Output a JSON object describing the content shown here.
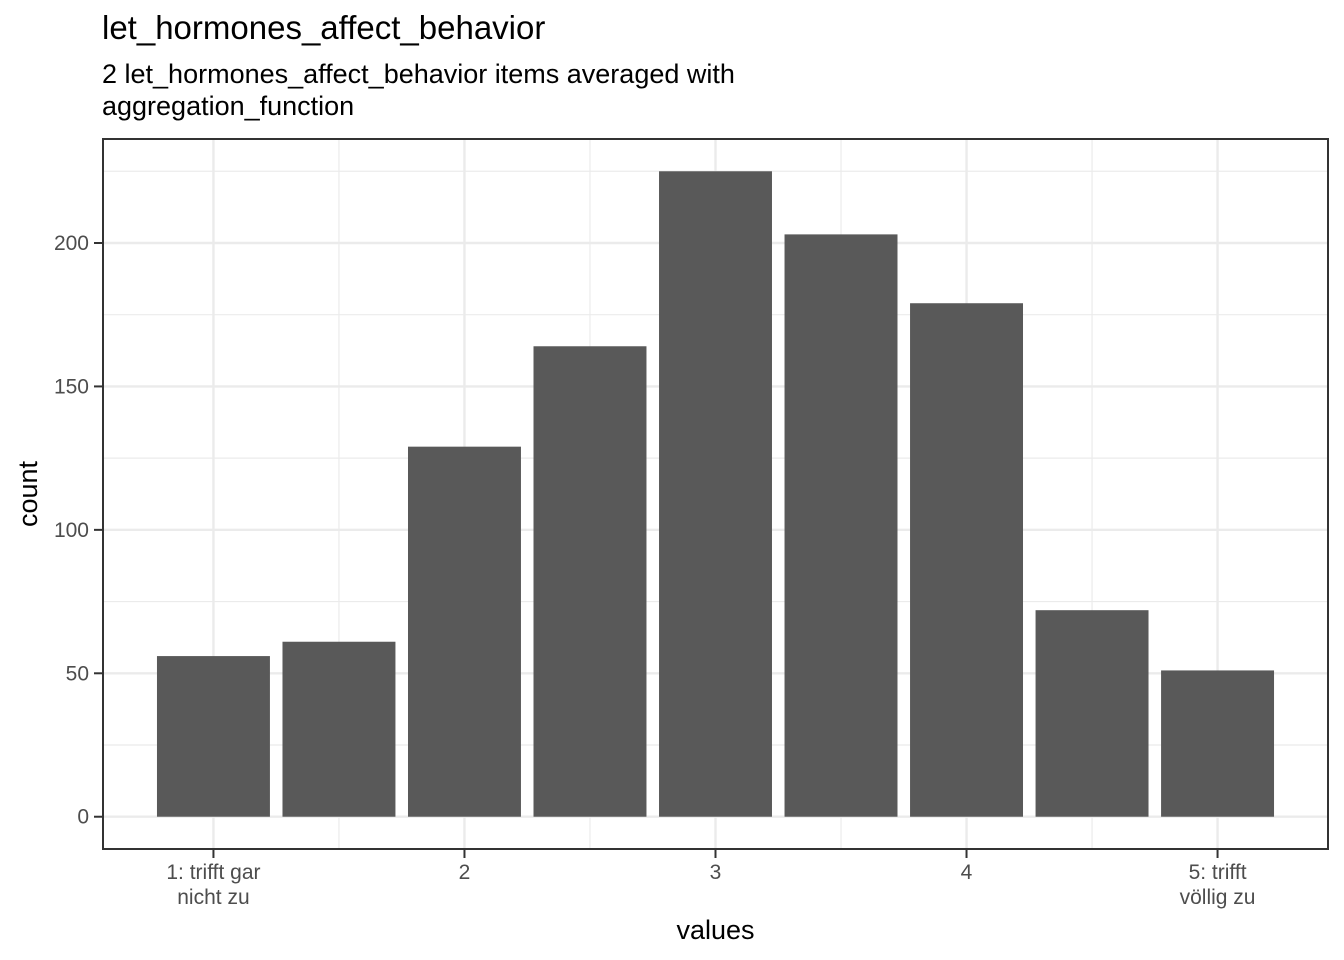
{
  "chart_data": {
    "type": "bar",
    "title": "let_hormones_affect_behavior",
    "subtitle": "2 let_hormones_affect_behavior items averaged with\naggregation_function",
    "xlabel": "values",
    "ylabel": "count",
    "x": [
      1,
      1.5,
      2,
      2.5,
      3,
      3.5,
      4,
      4.5,
      5
    ],
    "values": [
      56,
      61,
      129,
      164,
      225,
      203,
      179,
      72,
      51
    ],
    "xlim": [
      0.56,
      5.44
    ],
    "ylim": [
      -11.25,
      236.25
    ],
    "x_ticks": [
      {
        "value": 1,
        "label": "1: trifft gar\nnicht zu"
      },
      {
        "value": 2,
        "label": "2"
      },
      {
        "value": 3,
        "label": "3"
      },
      {
        "value": 4,
        "label": "4"
      },
      {
        "value": 5,
        "label": "5: trifft\nvöllig zu"
      }
    ],
    "y_ticks": [
      0,
      50,
      100,
      150,
      200
    ],
    "bar_color": "#595959",
    "grid": true,
    "legend": "none"
  }
}
